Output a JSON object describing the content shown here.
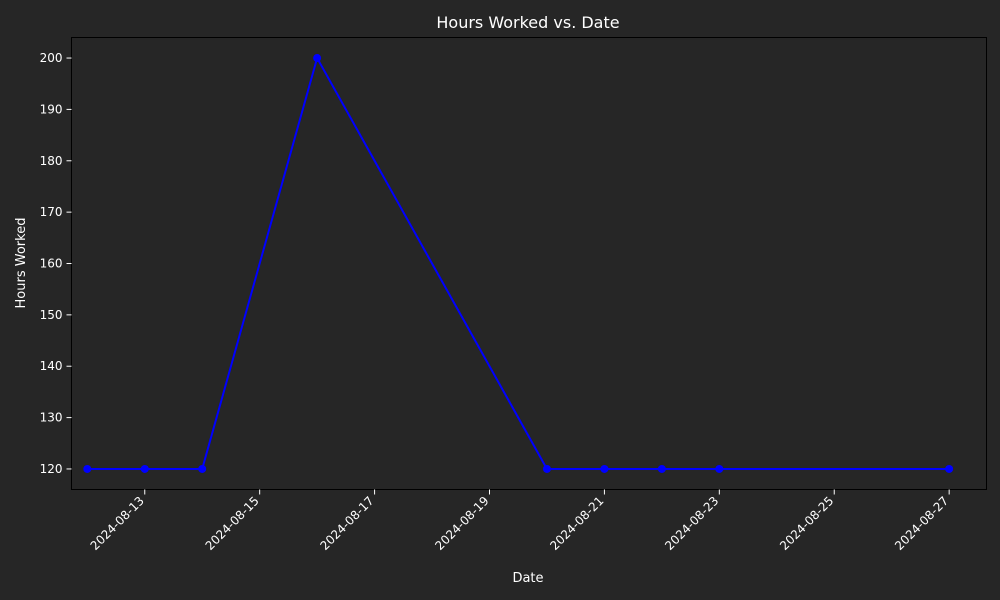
{
  "chart_data": {
    "type": "line",
    "title": "Hours Worked vs. Date",
    "xlabel": "Date",
    "ylabel": "Hours Worked",
    "x": [
      "2024-08-12",
      "2024-08-13",
      "2024-08-14",
      "2024-08-16",
      "2024-08-20",
      "2024-08-21",
      "2024-08-22",
      "2024-08-23",
      "2024-08-27"
    ],
    "series": [
      {
        "values": [
          120,
          120,
          120,
          200,
          120,
          120,
          120,
          120,
          120
        ]
      }
    ],
    "xlim": [
      "2024-08-11T17:24",
      "2024-08-27T15:36"
    ],
    "ylim": [
      116,
      204
    ],
    "x_ticks": [
      "2024-08-13",
      "2024-08-15",
      "2024-08-17",
      "2024-08-19",
      "2024-08-21",
      "2024-08-23",
      "2024-08-25",
      "2024-08-27"
    ],
    "y_ticks": [
      120,
      130,
      140,
      150,
      160,
      170,
      180,
      190,
      200
    ],
    "grid": false,
    "legend": "none",
    "colors": {
      "background": "#262626",
      "line": "#0000ff",
      "marker": "#0000ff",
      "axes": "#000000",
      "text": "#ffffff"
    }
  }
}
